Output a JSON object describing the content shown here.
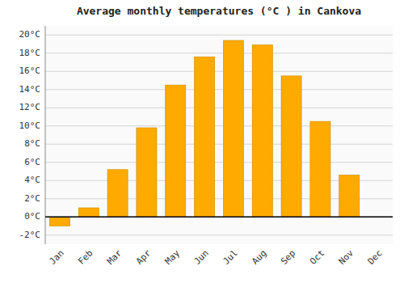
{
  "chart_data": {
    "type": "bar",
    "title": "Average monthly temperatures (°C ) in Cankova",
    "categories": [
      "Jan",
      "Feb",
      "Mar",
      "Apr",
      "May",
      "Jun",
      "Jul",
      "Aug",
      "Sep",
      "Oct",
      "Nov",
      "Dec"
    ],
    "values": [
      -1.0,
      1.0,
      5.2,
      9.8,
      14.5,
      17.6,
      19.4,
      18.9,
      15.5,
      10.5,
      4.6,
      0.0
    ],
    "color": "#FFAA00",
    "ylim": [
      -3,
      21
    ],
    "yticks": [
      {
        "value": -2,
        "label": "-2°C"
      },
      {
        "value": 0,
        "label": "0°C"
      },
      {
        "value": 2,
        "label": "2°C"
      },
      {
        "value": 4,
        "label": "4°C"
      },
      {
        "value": 6,
        "label": "6°C"
      },
      {
        "value": 8,
        "label": "8°C"
      },
      {
        "value": 10,
        "label": "10°C"
      },
      {
        "value": 12,
        "label": "12°C"
      },
      {
        "value": 14,
        "label": "14°C"
      },
      {
        "value": 16,
        "label": "16°C"
      },
      {
        "value": 18,
        "label": "18°C"
      },
      {
        "value": 20,
        "label": "20°C"
      }
    ],
    "grid": true
  }
}
